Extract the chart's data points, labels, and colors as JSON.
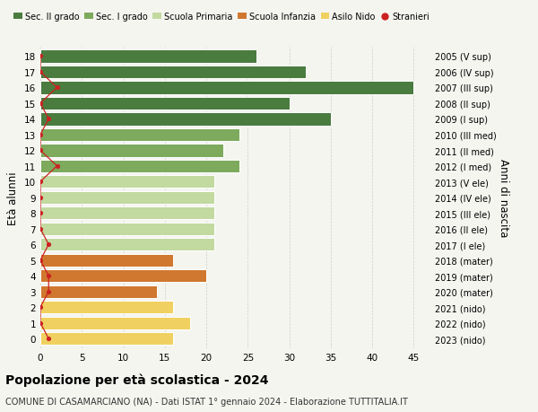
{
  "ages": [
    18,
    17,
    16,
    15,
    14,
    13,
    12,
    11,
    10,
    9,
    8,
    7,
    6,
    5,
    4,
    3,
    2,
    1,
    0
  ],
  "values": [
    26,
    32,
    45,
    30,
    35,
    24,
    22,
    24,
    21,
    21,
    21,
    21,
    21,
    16,
    20,
    14,
    16,
    18,
    16
  ],
  "colors": [
    "#4a7c3f",
    "#4a7c3f",
    "#4a7c3f",
    "#4a7c3f",
    "#4a7c3f",
    "#7daa5c",
    "#7daa5c",
    "#7daa5c",
    "#c2d9a0",
    "#c2d9a0",
    "#c2d9a0",
    "#c2d9a0",
    "#c2d9a0",
    "#d07830",
    "#d07830",
    "#d07830",
    "#f0d060",
    "#f0d060",
    "#f0d060"
  ],
  "right_labels": [
    "2005 (V sup)",
    "2006 (IV sup)",
    "2007 (III sup)",
    "2008 (II sup)",
    "2009 (I sup)",
    "2010 (III med)",
    "2011 (II med)",
    "2012 (I med)",
    "2013 (V ele)",
    "2014 (IV ele)",
    "2015 (III ele)",
    "2016 (II ele)",
    "2017 (I ele)",
    "2018 (mater)",
    "2019 (mater)",
    "2020 (mater)",
    "2021 (nido)",
    "2022 (nido)",
    "2023 (nido)"
  ],
  "legend_labels": [
    "Sec. II grado",
    "Sec. I grado",
    "Scuola Primaria",
    "Scuola Infanzia",
    "Asilo Nido",
    "Stranieri"
  ],
  "legend_colors": [
    "#4a7c3f",
    "#7daa5c",
    "#c2d9a0",
    "#d07830",
    "#f0d060",
    "#cc2222"
  ],
  "ylabel": "Età alunni",
  "ylabel_right": "Anni di nascita",
  "title": "Popolazione per età scolastica - 2024",
  "subtitle": "COMUNE DI CASAMARCIANO (NA) - Dati ISTAT 1° gennaio 2024 - Elaborazione TUTTITALIA.IT",
  "xlim": [
    0,
    47
  ],
  "xticks": [
    0,
    5,
    10,
    15,
    20,
    25,
    30,
    35,
    40,
    45
  ],
  "stranieri_x_values": [
    0,
    0,
    2,
    0,
    1,
    0,
    0,
    2,
    0,
    0,
    0,
    0,
    1,
    0,
    1,
    1,
    0,
    0,
    1
  ],
  "stranieri_color": "#cc2222",
  "bg_color": "#f5f5f0",
  "bar_edge_color": "white",
  "bar_height": 0.82
}
